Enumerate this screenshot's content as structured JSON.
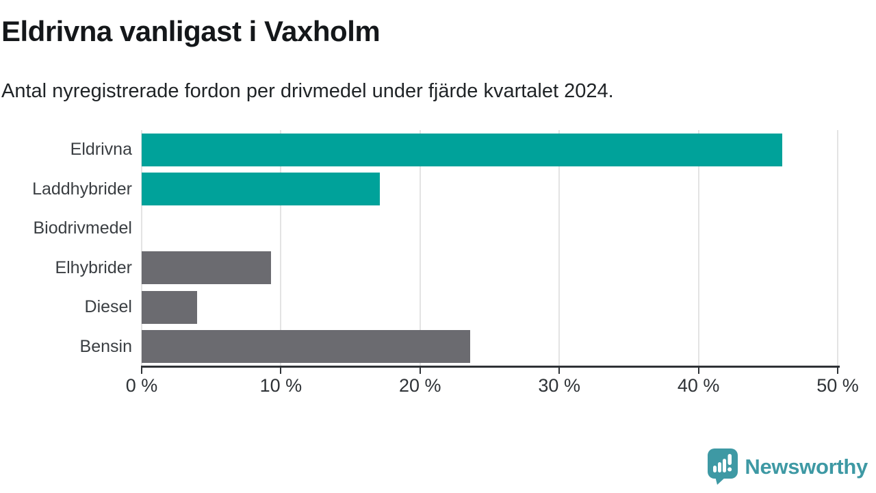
{
  "title": "Eldrivna vanligast i Vaxholm",
  "subtitle": "Antal nyregistrerade fordon per drivmedel under fjärde kvartalet 2024.",
  "logo": {
    "text": "Newsworthy",
    "icon": "speech-bubble-bar-chart-exclamation-icon"
  },
  "colors": {
    "teal_bar": "#00a29a",
    "gray_bar": "#6b6b70",
    "grid": "#e3e3e3",
    "axis": "#2e3236",
    "title_text": "#14171a",
    "category_text": "#3a3e42",
    "logo_brand": "#3e99a4"
  },
  "chart_data": {
    "type": "bar",
    "orientation": "horizontal",
    "title": "Eldrivna vanligast i Vaxholm",
    "subtitle": "Antal nyregistrerade fordon per drivmedel under fjärde kvartalet 2024.",
    "categories": [
      "Eldrivna",
      "Laddhybrider",
      "Biodrivmedel",
      "Elhybrider",
      "Diesel",
      "Bensin"
    ],
    "values": [
      46,
      17.1,
      0,
      9.3,
      4,
      23.6
    ],
    "unit": "%",
    "bar_colors": [
      "#00a29a",
      "#00a29a",
      "#6b6b70",
      "#6b6b70",
      "#6b6b70",
      "#6b6b70"
    ],
    "xlim": [
      0,
      50
    ],
    "x_ticks": [
      0,
      10,
      20,
      30,
      40,
      50
    ],
    "x_tick_labels": [
      "0 %",
      "10 %",
      "20 %",
      "30 %",
      "40 %",
      "50 %"
    ],
    "grid": "vertical-only",
    "legend": "none",
    "ylabel": "",
    "xlabel": ""
  }
}
